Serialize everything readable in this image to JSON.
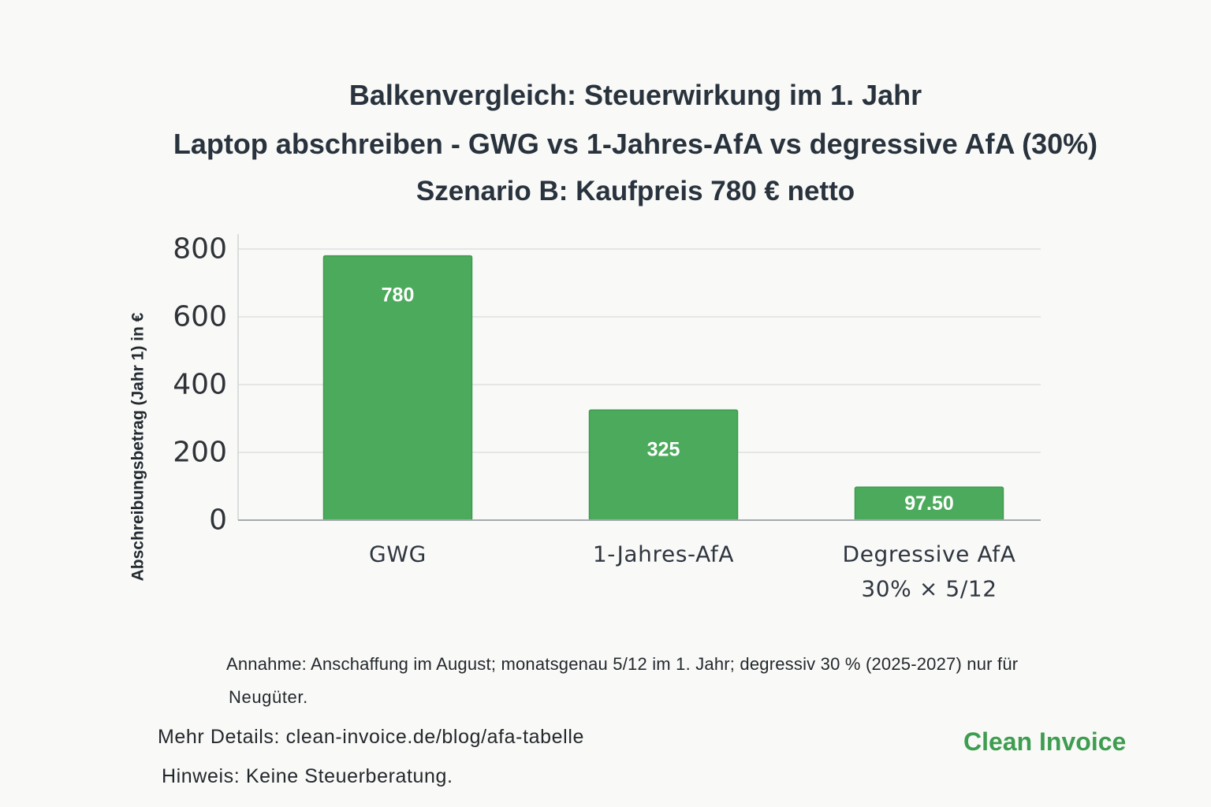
{
  "chart_data": {
    "type": "bar",
    "title": "Balkenvergleich: Steuerwirkung im 1. Jahr",
    "subtitle": [
      "Laptop abschreiben - GWG vs 1-Jahres-AfA vs degressive AfA (30%)",
      "Szenario B: Kaufpreis 780 € netto"
    ],
    "categories": [
      [
        "GWG"
      ],
      [
        "1-Jahres-AfA"
      ],
      [
        "Degressive AfA",
        "30% × 5/12"
      ]
    ],
    "values": [
      780,
      325,
      97.5
    ],
    "data_labels": [
      "780",
      "325",
      "97.50"
    ],
    "xlabel": "",
    "ylabel": "Abschreibungsbetrag (Jahr 1) in €",
    "ylim": [
      0,
      800
    ],
    "yticks": [
      0,
      200,
      400,
      600,
      800
    ],
    "grid": true,
    "legend": false
  },
  "notes": {
    "assumption": [
      "Annahme: Anschaffung im August; monatsgenau 5/12 im 1. Jahr; degressiv 30 % (2025-2027) nur für",
      "Neugüter."
    ],
    "details": "Mehr Details: clean-invoice.de/blog/afa-tabelle",
    "disclaimer": "Hinweis: Keine Steuerberatung."
  },
  "brand": {
    "name": "Clean Invoice"
  },
  "colors": {
    "background": "#f9f9f7",
    "text": "#29333d",
    "bar": "#4caa5c",
    "bar_border": "#3f9a4f",
    "data_label": "#ffffff",
    "gridline": "#dde1e1",
    "axis": "#a3aaad",
    "brand": "#3e9d50"
  }
}
